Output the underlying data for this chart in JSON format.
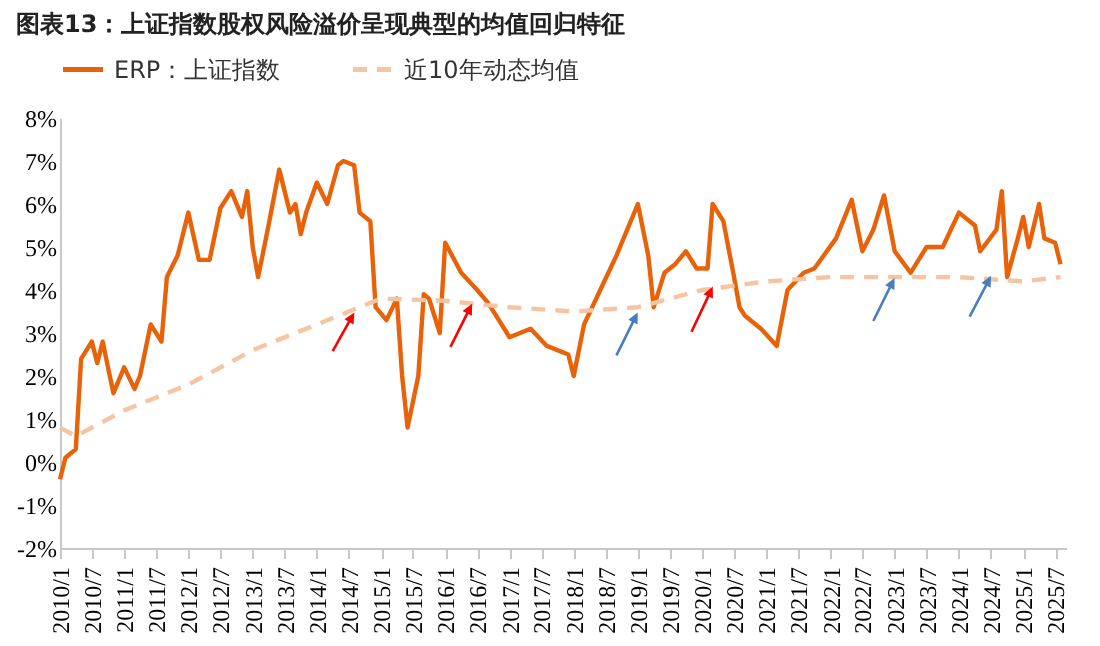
{
  "chart_data": {
    "type": "line",
    "title": "图表13：上证指数股权风险溢价呈现典型的均值回归特征",
    "series": [
      {
        "name": "ERP：上证指数",
        "color": "#e8620a",
        "line_style": "solid",
        "x": [
          "2010-01",
          "2010-02",
          "2010-04",
          "2010-05",
          "2010-07",
          "2010-08",
          "2010-09",
          "2010-10",
          "2010-11",
          "2011-01",
          "2011-03",
          "2011-04",
          "2011-06",
          "2011-08",
          "2011-09",
          "2011-11",
          "2012-01",
          "2012-03",
          "2012-05",
          "2012-07",
          "2012-09",
          "2012-11",
          "2012-12",
          "2013-01",
          "2013-02",
          "2013-04",
          "2013-06",
          "2013-08",
          "2013-09",
          "2013-10",
          "2013-11",
          "2014-01",
          "2014-03",
          "2014-05",
          "2014-06",
          "2014-08",
          "2014-09",
          "2014-11",
          "2014-12",
          "2015-02",
          "2015-04",
          "2015-05",
          "2015-06",
          "2015-08",
          "2015-09",
          "2015-10",
          "2015-12",
          "2016-01",
          "2016-04",
          "2016-07",
          "2016-09",
          "2017-01",
          "2017-05",
          "2017-08",
          "2017-12",
          "2018-01",
          "2018-03",
          "2018-06",
          "2018-09",
          "2019-01",
          "2019-03",
          "2019-04",
          "2019-06",
          "2019-08",
          "2019-10",
          "2019-12",
          "2020-02",
          "2020-03",
          "2020-05",
          "2020-07",
          "2020-08",
          "2020-09",
          "2020-12",
          "2021-03",
          "2021-05",
          "2021-08",
          "2021-10",
          "2022-02",
          "2022-05",
          "2022-07",
          "2022-09",
          "2022-11",
          "2023-01",
          "2023-04",
          "2023-07",
          "2023-10",
          "2024-01",
          "2024-04",
          "2024-05",
          "2024-08",
          "2024-09",
          "2024-10",
          "2024-12",
          "2025-01",
          "2025-02",
          "2025-04",
          "2025-05",
          "2025-07",
          "2025-08"
        ],
        "values": [
          -0.4,
          0.1,
          0.3,
          2.4,
          2.8,
          2.3,
          2.8,
          2.2,
          1.6,
          2.2,
          1.7,
          2.0,
          3.2,
          2.8,
          4.3,
          4.8,
          5.8,
          4.7,
          4.7,
          5.9,
          6.3,
          5.7,
          6.3,
          5.0,
          4.3,
          5.5,
          6.8,
          5.8,
          6.0,
          5.3,
          5.8,
          6.5,
          6.0,
          6.9,
          7.0,
          6.9,
          5.8,
          5.6,
          3.6,
          3.3,
          3.8,
          2.0,
          0.8,
          2.0,
          3.9,
          3.8,
          3.0,
          5.1,
          4.4,
          4.0,
          3.7,
          2.9,
          3.1,
          2.7,
          2.5,
          2.0,
          3.2,
          4.0,
          4.8,
          6.0,
          4.8,
          3.6,
          4.4,
          4.6,
          4.9,
          4.5,
          4.5,
          6.0,
          5.6,
          4.3,
          3.6,
          3.4,
          3.1,
          2.7,
          4.0,
          4.4,
          4.5,
          5.2,
          6.1,
          4.9,
          5.4,
          6.2,
          4.9,
          4.4,
          5.0,
          5.0,
          5.8,
          5.5,
          4.9,
          5.4,
          6.3,
          4.3,
          5.2,
          5.7,
          5.0,
          6.0,
          5.2,
          5.1,
          4.6
        ]
      },
      {
        "name": "近10年动态均值",
        "color": "#f5c4a3",
        "line_style": "dashed",
        "x": [
          "2010-01",
          "2010-04",
          "2011-01",
          "2012-01",
          "2013-01",
          "2014-01",
          "2015-01",
          "2016-01",
          "2017-01",
          "2018-01",
          "2019-01",
          "2020-01",
          "2021-01",
          "2022-01",
          "2023-01",
          "2024-01",
          "2025-01",
          "2025-08"
        ],
        "values": [
          0.8,
          0.6,
          1.2,
          1.8,
          2.6,
          3.2,
          3.8,
          3.75,
          3.6,
          3.5,
          3.6,
          4.0,
          4.2,
          4.3,
          4.3,
          4.3,
          4.2,
          4.3
        ]
      }
    ],
    "xlim": [
      "2010-01",
      "2025-09"
    ],
    "xticks": [
      {
        "value": "2010-01",
        "label": "2010/1"
      },
      {
        "value": "2010-07",
        "label": "2010/7"
      },
      {
        "value": "2011-01",
        "label": "2011/1"
      },
      {
        "value": "2011-07",
        "label": "2011/7"
      },
      {
        "value": "2012-01",
        "label": "2012/1"
      },
      {
        "value": "2012-07",
        "label": "2012/7"
      },
      {
        "value": "2013-01",
        "label": "2013/1"
      },
      {
        "value": "2013-07",
        "label": "2013/7"
      },
      {
        "value": "2014-01",
        "label": "2014/1"
      },
      {
        "value": "2014-07",
        "label": "2014/7"
      },
      {
        "value": "2015-01",
        "label": "2015/1"
      },
      {
        "value": "2015-07",
        "label": "2015/7"
      },
      {
        "value": "2016-01",
        "label": "2016/1"
      },
      {
        "value": "2016-07",
        "label": "2016/7"
      },
      {
        "value": "2017-01",
        "label": "2017/1"
      },
      {
        "value": "2017-07",
        "label": "2017/7"
      },
      {
        "value": "2018-01",
        "label": "2018/1"
      },
      {
        "value": "2018-07",
        "label": "2018/7"
      },
      {
        "value": "2019-01",
        "label": "2019/1"
      },
      {
        "value": "2019-07",
        "label": "2019/7"
      },
      {
        "value": "2020-01",
        "label": "2020/1"
      },
      {
        "value": "2020-07",
        "label": "2020/7"
      },
      {
        "value": "2021-01",
        "label": "2021/1"
      },
      {
        "value": "2021-07",
        "label": "2021/7"
      },
      {
        "value": "2022-01",
        "label": "2022/1"
      },
      {
        "value": "2022-07",
        "label": "2022/7"
      },
      {
        "value": "2023-01",
        "label": "2023/1"
      },
      {
        "value": "2023-07",
        "label": "2023/7"
      },
      {
        "value": "2024-01",
        "label": "2024/1"
      },
      {
        "value": "2024-07",
        "label": "2024/7"
      },
      {
        "value": "2025-01",
        "label": "2025/1"
      },
      {
        "value": "2025-07",
        "label": "2025/7"
      }
    ],
    "ylim": [
      -2,
      8
    ],
    "yticks": [
      {
        "value": -2,
        "label": "-2%"
      },
      {
        "value": -1,
        "label": "-1%"
      },
      {
        "value": 0,
        "label": "0%"
      },
      {
        "value": 1,
        "label": "1%"
      },
      {
        "value": 2,
        "label": "2%"
      },
      {
        "value": 3,
        "label": "3%"
      },
      {
        "value": 4,
        "label": "4%"
      },
      {
        "value": 5,
        "label": "5%"
      },
      {
        "value": 6,
        "label": "6%"
      },
      {
        "value": 7,
        "label": "7%"
      },
      {
        "value": 8,
        "label": "8%"
      }
    ],
    "grid": false,
    "legend": "top",
    "marker": "none"
  }
}
